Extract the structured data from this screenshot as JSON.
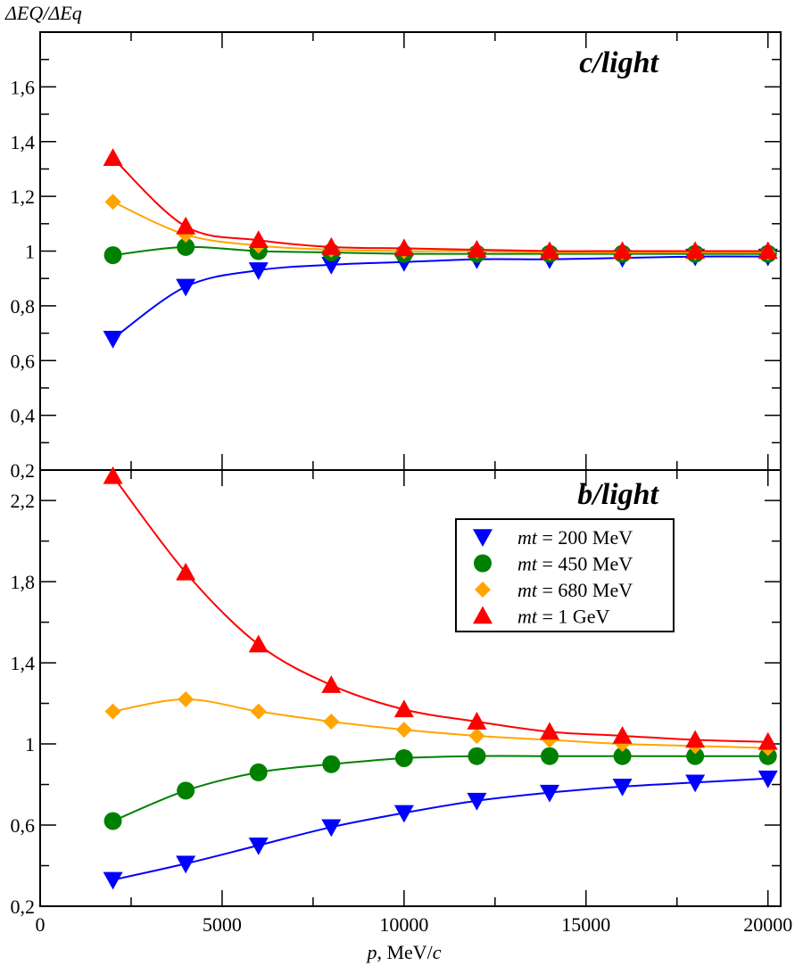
{
  "chart_data": [
    {
      "type": "line",
      "panel": "top",
      "title": "c/light",
      "ylabel": "ΔEQ/ΔEq",
      "xlabel": "",
      "xlim": [
        0,
        20350
      ],
      "ylim": [
        0.2,
        1.8
      ],
      "yticks": [
        0.2,
        0.4,
        0.6,
        0.8,
        1,
        1.2,
        1.4,
        1.6
      ],
      "ytick_labels": [
        "0,2",
        "0,4",
        "0,6",
        "0,8",
        "1",
        "1,2",
        "1,4",
        "1,6"
      ],
      "x": [
        2000,
        4000,
        6000,
        8000,
        10000,
        12000,
        14000,
        16000,
        18000,
        20000
      ],
      "series": [
        {
          "name": "mt = 200 MeV",
          "marker": "triangle-down",
          "color": "#0000ff",
          "values": [
            0.68,
            0.87,
            0.93,
            0.95,
            0.96,
            0.97,
            0.97,
            0.975,
            0.98,
            0.98
          ]
        },
        {
          "name": "mt = 450 MeV",
          "marker": "circle",
          "color": "#008000",
          "values": [
            0.985,
            1.015,
            1.0,
            0.995,
            0.99,
            0.99,
            0.99,
            0.99,
            0.99,
            0.99
          ]
        },
        {
          "name": "mt = 680 MeV",
          "marker": "diamond",
          "color": "#ffa500",
          "values": [
            1.18,
            1.06,
            1.02,
            1.005,
            1.0,
            1.0,
            0.995,
            0.995,
            0.995,
            0.995
          ]
        },
        {
          "name": "mt = 1 GeV",
          "marker": "triangle-up",
          "color": "#ff0000",
          "values": [
            1.34,
            1.09,
            1.04,
            1.015,
            1.01,
            1.005,
            1.0,
            1.0,
            1.0,
            1.0
          ]
        }
      ]
    },
    {
      "type": "line",
      "panel": "bottom",
      "title": "b/light",
      "xlabel": "p, MeV/c",
      "xlim": [
        0,
        20350
      ],
      "ylim": [
        0.2,
        2.35
      ],
      "xticks": [
        0,
        5000,
        10000,
        15000,
        20000
      ],
      "xtick_labels": [
        "0",
        "5000",
        "10000",
        "15000",
        "20000"
      ],
      "yticks": [
        0.2,
        0.6,
        1,
        1.4,
        1.8,
        2.2
      ],
      "ytick_labels": [
        "0,2",
        "0,6",
        "1",
        "1,4",
        "1,8",
        "2,2"
      ],
      "legend": "upper-right",
      "x": [
        2000,
        4000,
        6000,
        8000,
        10000,
        12000,
        14000,
        16000,
        18000,
        20000
      ],
      "series": [
        {
          "name": "mt = 200 MeV",
          "marker": "triangle-down",
          "color": "#0000ff",
          "values": [
            0.33,
            0.41,
            0.5,
            0.59,
            0.66,
            0.72,
            0.76,
            0.79,
            0.81,
            0.83
          ]
        },
        {
          "name": "mt = 450 MeV",
          "marker": "circle",
          "color": "#008000",
          "values": [
            0.62,
            0.77,
            0.86,
            0.9,
            0.93,
            0.94,
            0.94,
            0.94,
            0.94,
            0.94
          ]
        },
        {
          "name": "mt = 680 MeV",
          "marker": "diamond",
          "color": "#ffa500",
          "values": [
            1.16,
            1.22,
            1.16,
            1.11,
            1.07,
            1.04,
            1.02,
            1.0,
            0.99,
            0.98
          ]
        },
        {
          "name": "mt = 1 GeV",
          "marker": "triangle-up",
          "color": "#ff0000",
          "values": [
            2.32,
            1.845,
            1.49,
            1.29,
            1.17,
            1.11,
            1.06,
            1.04,
            1.02,
            1.01
          ]
        }
      ]
    }
  ],
  "legend": {
    "items": [
      {
        "var": "mt",
        "rest": " = 200 MeV"
      },
      {
        "var": "mt",
        "rest": " = 450 MeV"
      },
      {
        "var": "mt",
        "rest": " = 680 MeV"
      },
      {
        "var": "mt",
        "rest": " = 1 GeV"
      }
    ]
  },
  "axis": {
    "ylabel": "ΔEQ/ΔEq",
    "xlabel_var": "p",
    "xlabel_mid": ", MeV/",
    "xlabel_c": "c"
  }
}
